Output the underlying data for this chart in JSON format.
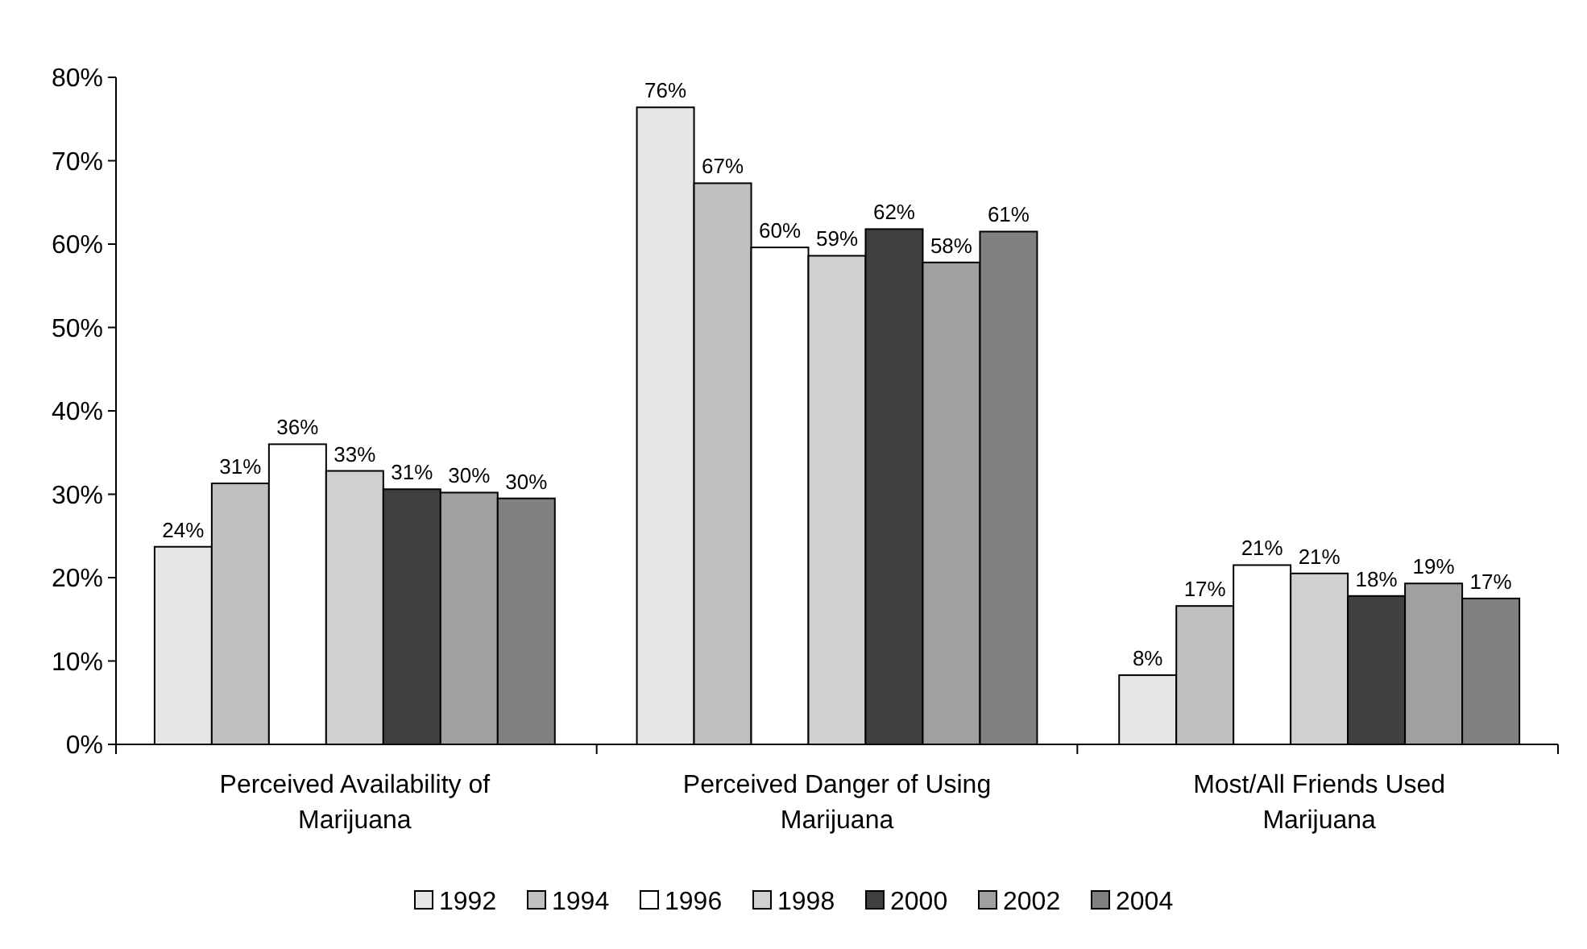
{
  "chart_data": {
    "type": "bar",
    "categories": [
      "Perceived Availability of Marijuana",
      "Perceived Danger of Using Marijuana",
      "Most/All Friends Used Marijuana"
    ],
    "series": [
      {
        "name": "1992",
        "color": "#e6e6e6",
        "values": [
          23.7,
          76.4,
          8.3
        ],
        "value_labels": [
          "24%",
          "76%",
          "8%"
        ]
      },
      {
        "name": "1994",
        "color": "#c0c0c0",
        "values": [
          31.3,
          67.3,
          16.6
        ],
        "value_labels": [
          "31%",
          "67%",
          "17%"
        ]
      },
      {
        "name": "1996",
        "color": "#ffffff",
        "values": [
          36.0,
          59.6,
          21.5
        ],
        "value_labels": [
          "36%",
          "60%",
          "21%"
        ]
      },
      {
        "name": "1998",
        "color": "#d0d0d0",
        "values": [
          32.8,
          58.6,
          20.5
        ],
        "value_labels": [
          "33%",
          "59%",
          "21%"
        ]
      },
      {
        "name": "2000",
        "color": "#404040",
        "values": [
          30.6,
          61.8,
          17.8
        ],
        "value_labels": [
          "31%",
          "62%",
          "18%"
        ]
      },
      {
        "name": "2002",
        "color": "#a0a0a0",
        "values": [
          30.2,
          57.8,
          19.3
        ],
        "value_labels": [
          "30%",
          "58%",
          "19%"
        ]
      },
      {
        "name": "2004",
        "color": "#808080",
        "values": [
          29.5,
          61.5,
          17.5
        ],
        "value_labels": [
          "30%",
          "61%",
          "17%"
        ]
      }
    ],
    "ylim": [
      0,
      80
    ],
    "yticks": [
      {
        "value": 0,
        "label": "0%"
      },
      {
        "value": 10,
        "label": "10%"
      },
      {
        "value": 20,
        "label": "20%"
      },
      {
        "value": 30,
        "label": "30%"
      },
      {
        "value": 40,
        "label": "40%"
      },
      {
        "value": 50,
        "label": "50%"
      },
      {
        "value": 60,
        "label": "60%"
      },
      {
        "value": 70,
        "label": "70%"
      },
      {
        "value": 80,
        "label": "80%"
      }
    ],
    "grid": false,
    "legend": "bottom"
  }
}
